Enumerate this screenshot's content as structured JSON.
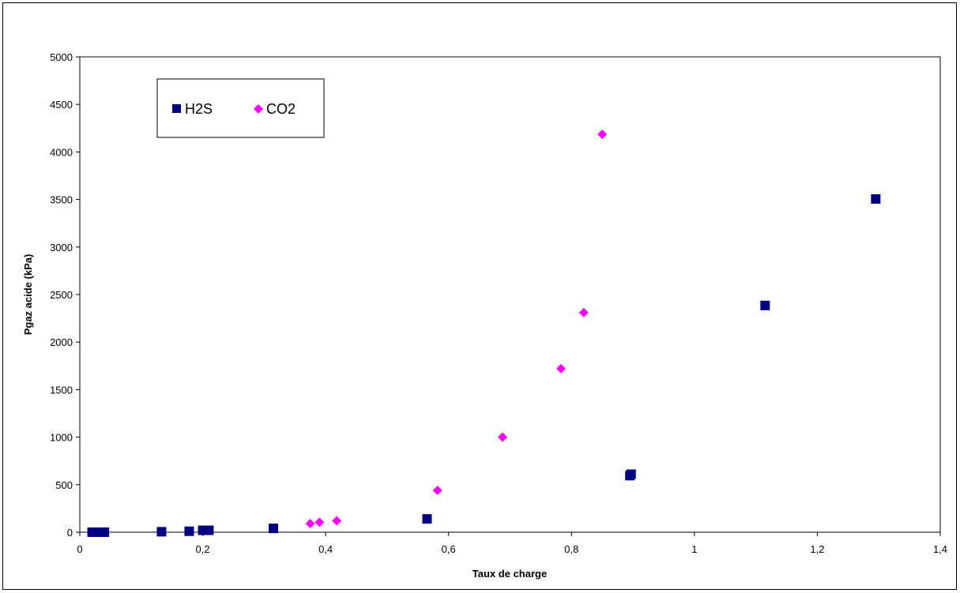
{
  "chart_data": {
    "type": "scatter",
    "title": "",
    "xlabel": "Taux de charge",
    "ylabel": "Pgaz acide (kPa)",
    "xlim": [
      0,
      1.4
    ],
    "ylim": [
      0,
      5000
    ],
    "x_ticks": [
      "0",
      "0,2",
      "0,4",
      "0,6",
      "0,8",
      "1",
      "1,2",
      "1,4"
    ],
    "y_ticks": [
      "0",
      "500",
      "1000",
      "1500",
      "2000",
      "2500",
      "3000",
      "3500",
      "4000",
      "4500",
      "5000"
    ],
    "grid": false,
    "legend_position": "top-left",
    "series": [
      {
        "name": "H2S",
        "color": "#000080",
        "marker": "square",
        "points": [
          [
            0.02,
            0
          ],
          [
            0.025,
            0
          ],
          [
            0.03,
            0
          ],
          [
            0.035,
            0
          ],
          [
            0.04,
            0
          ],
          [
            0.133,
            5
          ],
          [
            0.178,
            10
          ],
          [
            0.2,
            20
          ],
          [
            0.21,
            20
          ],
          [
            0.315,
            40
          ],
          [
            0.565,
            140
          ],
          [
            0.895,
            595
          ],
          [
            0.897,
            610
          ],
          [
            1.115,
            2385
          ],
          [
            1.295,
            3505
          ]
        ]
      },
      {
        "name": "CO2",
        "color": "#FF00FF",
        "marker": "diamond",
        "points": [
          [
            0.375,
            90
          ],
          [
            0.39,
            105
          ],
          [
            0.418,
            120
          ],
          [
            0.582,
            440
          ],
          [
            0.688,
            1000
          ],
          [
            0.783,
            1720
          ],
          [
            0.82,
            2310
          ],
          [
            0.85,
            4185
          ]
        ]
      }
    ]
  }
}
